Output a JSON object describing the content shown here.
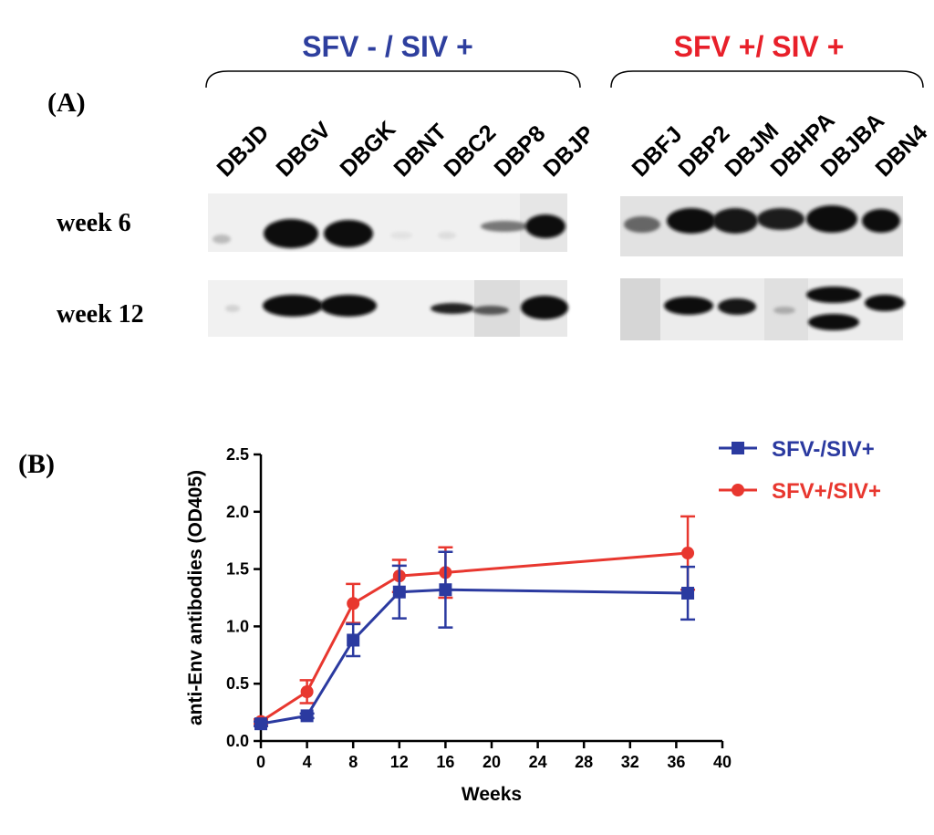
{
  "panel_a": {
    "label": "(A)",
    "groups": [
      {
        "title": "SFV - / SIV +",
        "color": "#2e3f9e",
        "lanes": [
          "DBJD",
          "DBGV",
          "DBGK",
          "DBNT",
          "DBC2",
          "DBP8",
          "DBJP"
        ]
      },
      {
        "title": "SFV +/ SIV +",
        "color": "#e8202a",
        "lanes": [
          "DBFJ",
          "DBP2",
          "DBJM",
          "DBHPA",
          "DBJBA",
          "DBN4"
        ]
      }
    ],
    "rows": [
      "week 6",
      "week 12"
    ]
  },
  "panel_b": {
    "label": "(B)"
  },
  "chart_data": {
    "type": "line",
    "xlabel": "Weeks",
    "ylabel": "anti-Env antibodies (OD405)",
    "xlim": [
      0,
      40
    ],
    "ylim": [
      0,
      2.5
    ],
    "xticks": [
      "0",
      "4",
      "8",
      "12",
      "16",
      "20",
      "24",
      "28",
      "32",
      "36",
      "40"
    ],
    "yticks": [
      "0.0",
      "0.5",
      "1.0",
      "1.5",
      "2.0",
      "2.5"
    ],
    "x": [
      0,
      4,
      8,
      12,
      16,
      37
    ],
    "series": [
      {
        "name": "SFV-/SIV+",
        "color": "#2b3aa0",
        "marker": "square",
        "values": [
          0.15,
          0.22,
          0.88,
          1.3,
          1.32,
          1.29
        ],
        "err": [
          0.02,
          0.02,
          0.14,
          0.23,
          0.33,
          0.23
        ]
      },
      {
        "name": "SFV+/SIV+",
        "color": "#e8372f",
        "marker": "circle",
        "values": [
          0.17,
          0.43,
          1.2,
          1.44,
          1.47,
          1.64
        ],
        "err": [
          0.02,
          0.1,
          0.17,
          0.14,
          0.22,
          0.32
        ]
      }
    ],
    "legend": "top-right"
  }
}
